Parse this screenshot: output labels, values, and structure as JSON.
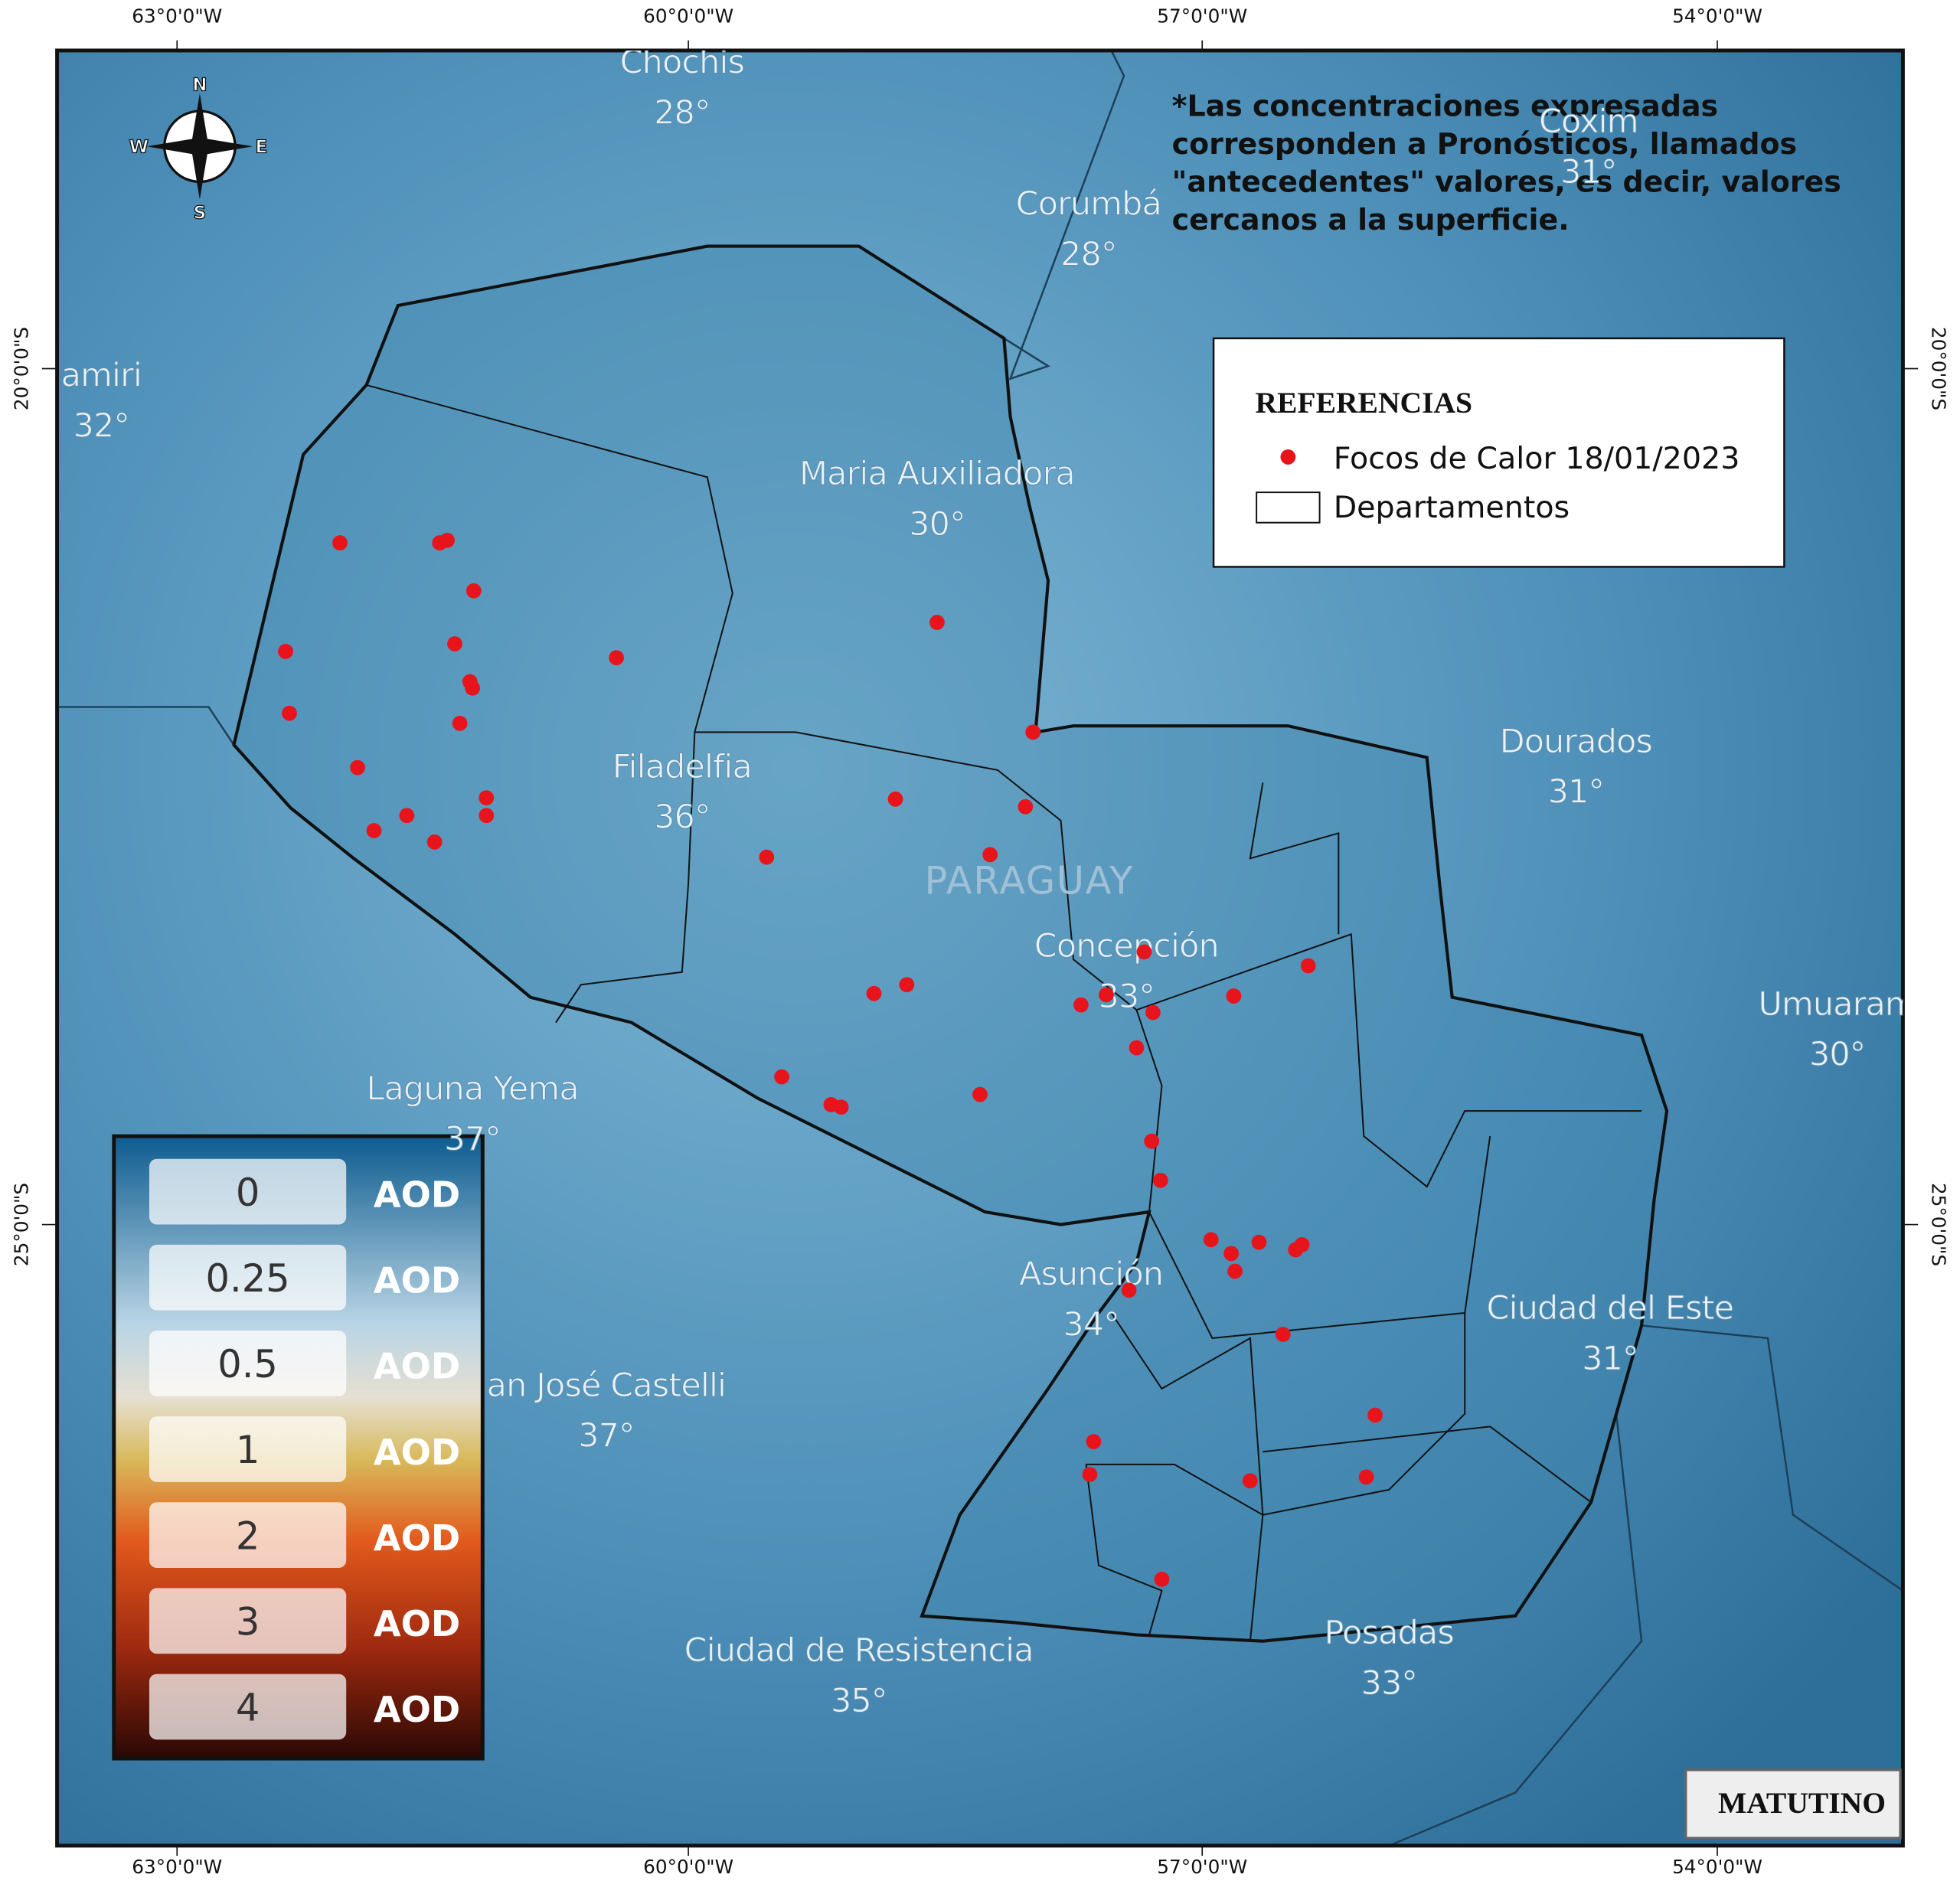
{
  "graticule": {
    "longitudes": [
      "63°0'0\"W",
      "60°0'0\"W",
      "57°0'0\"W",
      "54°0'0\"W"
    ],
    "latitudes": [
      "20°0'0\"S",
      "25°0'0\"S"
    ]
  },
  "cities": [
    {
      "name": "Chochis",
      "temp": "28°"
    },
    {
      "name": "Corumbá",
      "temp": "28°"
    },
    {
      "name": "Coxim",
      "temp": "31°"
    },
    {
      "name": "amiri",
      "temp": "32°"
    },
    {
      "name": "Maria Auxiliadora",
      "temp": "30°"
    },
    {
      "name": "Filadelfia",
      "temp": "36°"
    },
    {
      "name": "Dourados",
      "temp": "31°"
    },
    {
      "name": "Concepción",
      "temp": "33°"
    },
    {
      "name": "Umuaram",
      "temp": "30°"
    },
    {
      "name": "Laguna Yema",
      "temp": "37°"
    },
    {
      "name": "Asunción",
      "temp": "34°"
    },
    {
      "name": "Ciudad del Este",
      "temp": "31°"
    },
    {
      "name": "an José Castelli",
      "temp": "37°"
    },
    {
      "name": "Ciudad de Resistencia",
      "temp": "35°"
    },
    {
      "name": "Posadas",
      "temp": "33°"
    }
  ],
  "country": "PARAGUAY",
  "note": [
    "*Las concentraciones expresadas",
    "corresponden a Pronósticos, llamados",
    "\"antecedentes\" valores, es decir, valores",
    "cercanos a la superficie."
  ],
  "references": {
    "title": "REFERENCIAS",
    "items": [
      "Focos de Calor 18/01/2023",
      "Departamentos"
    ]
  },
  "aod_legend": [
    {
      "value": "0",
      "unit": "AOD"
    },
    {
      "value": "0.25",
      "unit": "AOD"
    },
    {
      "value": "0.5",
      "unit": "AOD"
    },
    {
      "value": "1",
      "unit": "AOD"
    },
    {
      "value": "2",
      "unit": "AOD"
    },
    {
      "value": "3",
      "unit": "AOD"
    },
    {
      "value": "4",
      "unit": "AOD"
    }
  ],
  "badge": "MATUTINO"
}
